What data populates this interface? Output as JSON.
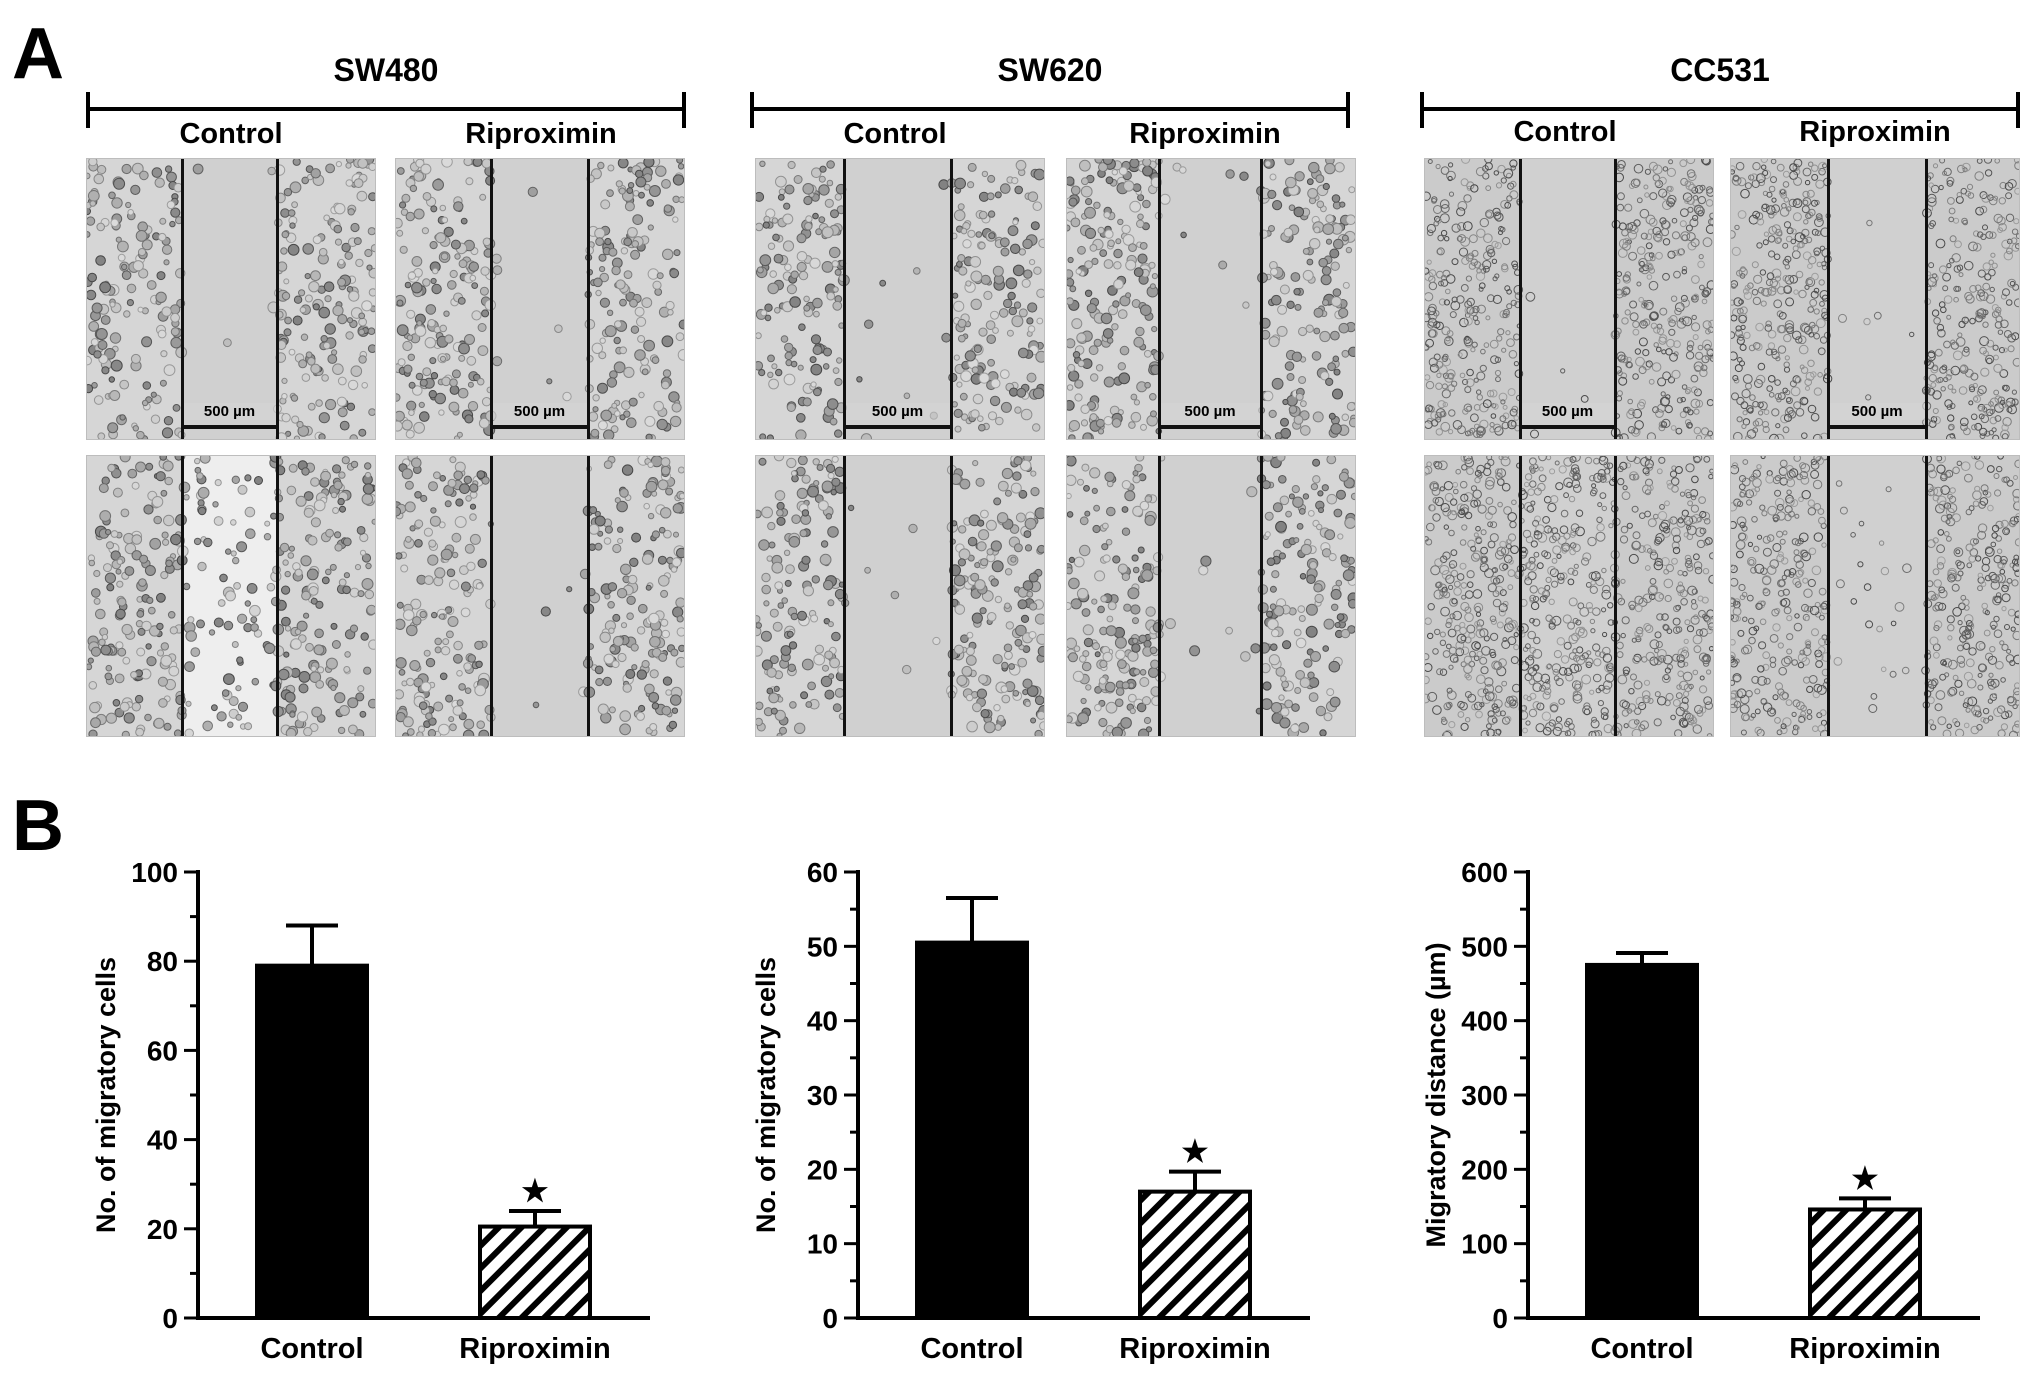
{
  "panels": {
    "a": "A",
    "b": "B"
  },
  "groups": [
    {
      "title": "SW480",
      "control": "Control",
      "treated": "Riproximin",
      "scale_control": "500 µm",
      "scale_treated": "500 µm"
    },
    {
      "title": "SW620",
      "control": "Control",
      "treated": "Riproximin",
      "scale_control": "500 µm",
      "scale_treated": "500 µm"
    },
    {
      "title": "CC531",
      "control": "Control",
      "treated": "Riproximin",
      "scale_control": "500 µm",
      "scale_treated": "500 µm"
    }
  ],
  "colors": {
    "control_bar": "#000000",
    "treated_bar": "hatched"
  },
  "chart_data": [
    {
      "type": "bar",
      "categories": [
        "Control",
        "Riproximin"
      ],
      "values": [
        79,
        20.5
      ],
      "errors": [
        9,
        3.5
      ],
      "ylabel": "No. of migratory cells",
      "ylim": [
        0,
        100
      ],
      "yticks": [
        "0",
        "20",
        "40",
        "60",
        "80",
        "100"
      ],
      "significance": "★"
    },
    {
      "type": "bar",
      "categories": [
        "Control",
        "Riproximin"
      ],
      "values": [
        50.5,
        17
      ],
      "errors": [
        6,
        2.7
      ],
      "ylabel": "No. of migratory cells",
      "ylim": [
        0,
        60
      ],
      "yticks": [
        "0",
        "10",
        "20",
        "30",
        "40",
        "50",
        "60"
      ],
      "significance": "★"
    },
    {
      "type": "bar",
      "categories": [
        "Control",
        "Riproximin"
      ],
      "values": [
        475,
        146
      ],
      "errors": [
        16,
        15
      ],
      "ylabel": "Migratory distance (µm)",
      "ylim": [
        0,
        600
      ],
      "yticks": [
        "0",
        "100",
        "200",
        "300",
        "400",
        "500",
        "600"
      ],
      "significance": "★"
    }
  ]
}
